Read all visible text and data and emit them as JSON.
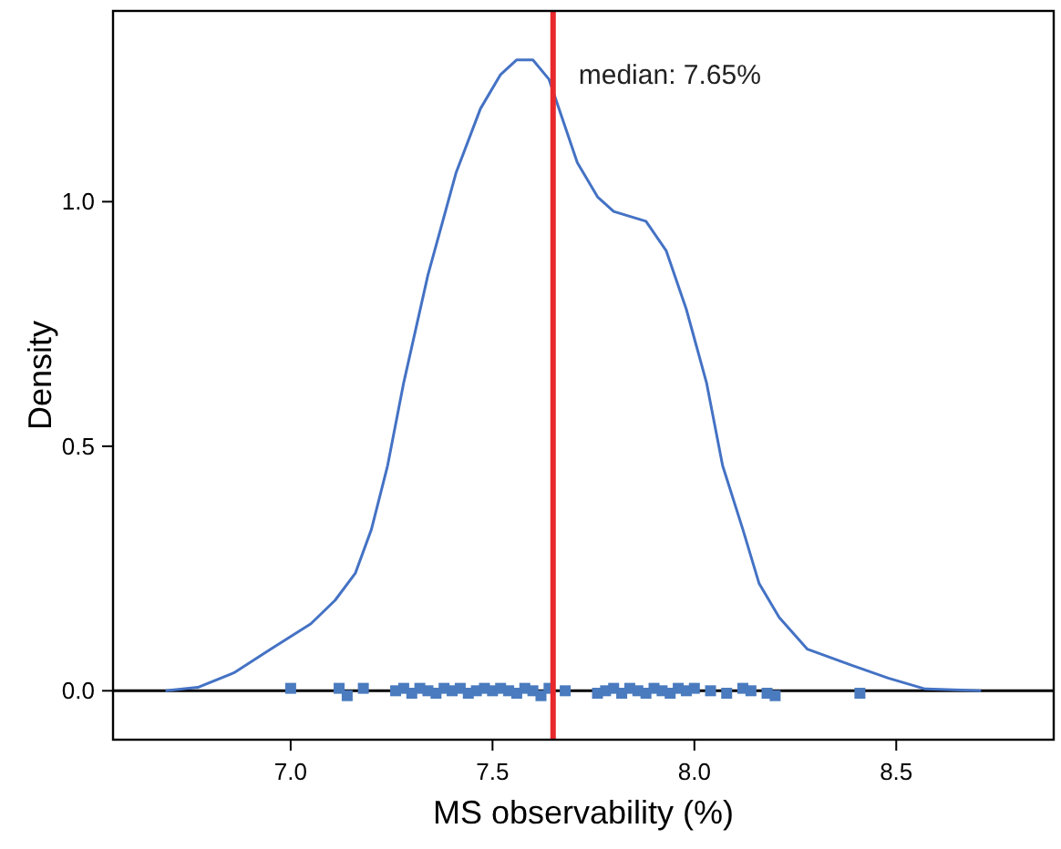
{
  "chart_data": {
    "type": "line",
    "xlabel": "MS observability (%)",
    "ylabel": "Density",
    "xlim": [
      6.56,
      8.89
    ],
    "ylim": [
      -0.1,
      1.39
    ],
    "xticks": [
      {
        "value": 7,
        "label": "7.0"
      },
      7.5,
      {
        "value": 8,
        "label": "8.0"
      },
      8.5
    ],
    "yticks": [
      {
        "value": 0,
        "label": "0.0"
      },
      0.5,
      {
        "value": 1,
        "label": "1.0"
      }
    ],
    "grid": false,
    "series": [
      {
        "color": "#4472c4",
        "marker": "none",
        "line_style": "solid",
        "x": [
          6.69,
          6.77,
          6.86,
          6.95,
          7.05,
          7.11,
          7.16,
          7.2,
          7.24,
          7.28,
          7.34,
          7.41,
          7.47,
          7.52,
          7.56,
          7.6,
          7.64,
          7.71,
          7.76,
          7.8,
          7.88,
          7.93,
          7.98,
          8.03,
          8.07,
          8.12,
          8.16,
          8.21,
          8.28,
          8.39,
          8.48,
          8.57,
          8.71
        ],
        "values": [
          0,
          0.007,
          0.037,
          0.085,
          0.137,
          0.185,
          0.24,
          0.33,
          0.46,
          0.63,
          0.85,
          1.06,
          1.19,
          1.26,
          1.29,
          1.29,
          1.25,
          1.08,
          1.01,
          0.98,
          0.96,
          0.9,
          0.78,
          0.63,
          0.46,
          0.33,
          0.22,
          0.15,
          0.085,
          0.052,
          0.026,
          0.004,
          0
        ]
      },
      {
        "type": "scatter",
        "color": "#4a7bbf",
        "marker": "square",
        "x": [
          7.0,
          7.12,
          7.14,
          7.18,
          7.26,
          7.28,
          7.3,
          7.32,
          7.34,
          7.36,
          7.38,
          7.4,
          7.42,
          7.44,
          7.46,
          7.48,
          7.5,
          7.52,
          7.54,
          7.56,
          7.58,
          7.6,
          7.62,
          7.64,
          7.66,
          7.68,
          7.76,
          7.78,
          7.8,
          7.82,
          7.84,
          7.86,
          7.88,
          7.9,
          7.92,
          7.94,
          7.96,
          7.98,
          8.0,
          8.04,
          8.08,
          8.12,
          8.14,
          8.18,
          8.2,
          8.41
        ],
        "values": [
          0.005,
          0.005,
          -0.01,
          0.005,
          0,
          0.005,
          -0.005,
          0.005,
          0,
          -0.005,
          0.005,
          0,
          0.005,
          -0.005,
          0,
          0.005,
          0,
          0.005,
          0,
          -0.005,
          0.005,
          0,
          -0.01,
          0.005,
          null,
          0,
          -0.005,
          0,
          0.005,
          -0.005,
          0.005,
          0,
          -0.005,
          0.005,
          0,
          -0.005,
          0.005,
          0,
          0.005,
          0,
          -0.005,
          0.005,
          0,
          -0.005,
          -0.01,
          -0.005
        ]
      }
    ],
    "ref_lines": [
      {
        "axis": "x",
        "value": 7.65,
        "label": "median: 7.65%",
        "color": "#e8282b"
      },
      {
        "axis": "y",
        "value": 0,
        "color": "#000000"
      }
    ]
  }
}
